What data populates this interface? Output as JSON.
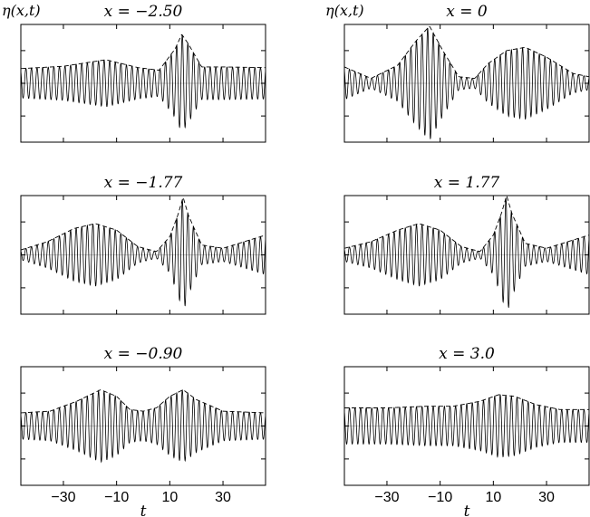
{
  "chart_data": [
    {
      "type": "line",
      "title": "x = −2.50",
      "ylabel": "η(x,t)",
      "xlabel": "",
      "xlim": [
        -46,
        46
      ],
      "ylim": [
        -1.8,
        1.8
      ],
      "x_ticks": [
        -30,
        -10,
        10,
        30
      ],
      "x_tick_labels": [
        "",
        "",
        "",
        ""
      ],
      "y_ticks": [
        -1,
        0,
        1
      ],
      "grid": false,
      "carrier_period": 2.1,
      "baseline": 0,
      "series": [
        {
          "style": "envelope-dashed",
          "x": [
            -46,
            -30,
            -14,
            -2,
            6,
            12,
            14.5,
            17,
            22,
            30,
            46
          ],
          "y": [
            0.45,
            0.52,
            0.72,
            0.48,
            0.4,
            1.05,
            1.5,
            1.2,
            0.5,
            0.5,
            0.48
          ]
        }
      ]
    },
    {
      "type": "line",
      "title": "x = 0",
      "ylabel": "η(x,t)",
      "xlabel": "",
      "xlim": [
        -46,
        46
      ],
      "ylim": [
        -1.8,
        1.8
      ],
      "x_ticks": [
        -30,
        -10,
        10,
        30
      ],
      "x_tick_labels": [
        "",
        "",
        "",
        ""
      ],
      "y_ticks": [
        -1,
        0,
        1
      ],
      "grid": false,
      "carrier_period": 2.1,
      "baseline": 0,
      "series": [
        {
          "style": "envelope-dashed",
          "x": [
            -46,
            -36,
            -26,
            -19,
            -14,
            -9,
            -3,
            3,
            8,
            15,
            22,
            30,
            40,
            46
          ],
          "y": [
            0.5,
            0.15,
            0.55,
            1.3,
            1.75,
            1.0,
            0.2,
            0.15,
            0.6,
            1.0,
            1.1,
            0.8,
            0.3,
            0.2
          ]
        }
      ]
    },
    {
      "type": "line",
      "title": "x = −1.77",
      "ylabel": "",
      "xlabel": "",
      "xlim": [
        -46,
        46
      ],
      "ylim": [
        -1.8,
        1.8
      ],
      "x_ticks": [
        -30,
        -10,
        10,
        30
      ],
      "x_tick_labels": [
        "",
        "",
        "",
        ""
      ],
      "y_ticks": [
        -1,
        0,
        1
      ],
      "grid": false,
      "carrier_period": 2.1,
      "baseline": 0,
      "series": [
        {
          "style": "envelope-dashed",
          "x": [
            -46,
            -36,
            -26,
            -18,
            -10,
            -2,
            5,
            10,
            13,
            15,
            17,
            22,
            30,
            46
          ],
          "y": [
            0.15,
            0.4,
            0.8,
            0.95,
            0.75,
            0.25,
            0.1,
            0.55,
            1.2,
            1.75,
            1.2,
            0.3,
            0.2,
            0.6
          ]
        }
      ]
    },
    {
      "type": "line",
      "title": "x = 1.77",
      "ylabel": "",
      "xlabel": "",
      "xlim": [
        -46,
        46
      ],
      "ylim": [
        -1.8,
        1.8
      ],
      "x_ticks": [
        -30,
        -10,
        10,
        30
      ],
      "x_tick_labels": [
        "",
        "",
        "",
        ""
      ],
      "y_ticks": [
        -1,
        0,
        1
      ],
      "grid": false,
      "carrier_period": 2.1,
      "baseline": 0,
      "series": [
        {
          "style": "envelope-dashed",
          "x": [
            -46,
            -36,
            -26,
            -18,
            -10,
            -2,
            5,
            10,
            13,
            15,
            17,
            22,
            30,
            46
          ],
          "y": [
            0.2,
            0.4,
            0.75,
            0.95,
            0.75,
            0.25,
            0.1,
            0.6,
            1.25,
            1.8,
            1.25,
            0.35,
            0.2,
            0.6
          ]
        }
      ]
    },
    {
      "type": "line",
      "title": "x = −0.90",
      "ylabel": "",
      "xlabel": "t",
      "xlim": [
        -46,
        46
      ],
      "ylim": [
        -1.8,
        1.8
      ],
      "x_ticks": [
        -30,
        -10,
        10,
        30
      ],
      "x_tick_labels": [
        "−30",
        "−10",
        "10",
        "30"
      ],
      "y_ticks": [
        -1,
        0,
        1
      ],
      "grid": false,
      "carrier_period": 2.1,
      "baseline": 0,
      "series": [
        {
          "style": "envelope-dashed",
          "x": [
            -46,
            -35,
            -25,
            -16,
            -10,
            -5,
            0,
            5,
            10,
            15,
            20,
            30,
            46
          ],
          "y": [
            0.4,
            0.45,
            0.75,
            1.1,
            0.9,
            0.5,
            0.45,
            0.55,
            0.9,
            1.1,
            0.8,
            0.45,
            0.4
          ]
        }
      ]
    },
    {
      "type": "line",
      "title": "x = 3.0",
      "ylabel": "",
      "xlabel": "t",
      "xlim": [
        -46,
        46
      ],
      "ylim": [
        -1.8,
        1.8
      ],
      "x_ticks": [
        -30,
        -10,
        10,
        30
      ],
      "x_tick_labels": [
        "−30",
        "−10",
        "10",
        "30"
      ],
      "y_ticks": [
        -1,
        0,
        1
      ],
      "grid": false,
      "carrier_period": 2.1,
      "baseline": 0,
      "series": [
        {
          "style": "envelope-dashed",
          "x": [
            -46,
            -30,
            -15,
            -5,
            5,
            12,
            18,
            26,
            35,
            46
          ],
          "y": [
            0.55,
            0.55,
            0.6,
            0.6,
            0.75,
            0.95,
            0.9,
            0.65,
            0.5,
            0.5
          ]
        }
      ]
    }
  ]
}
